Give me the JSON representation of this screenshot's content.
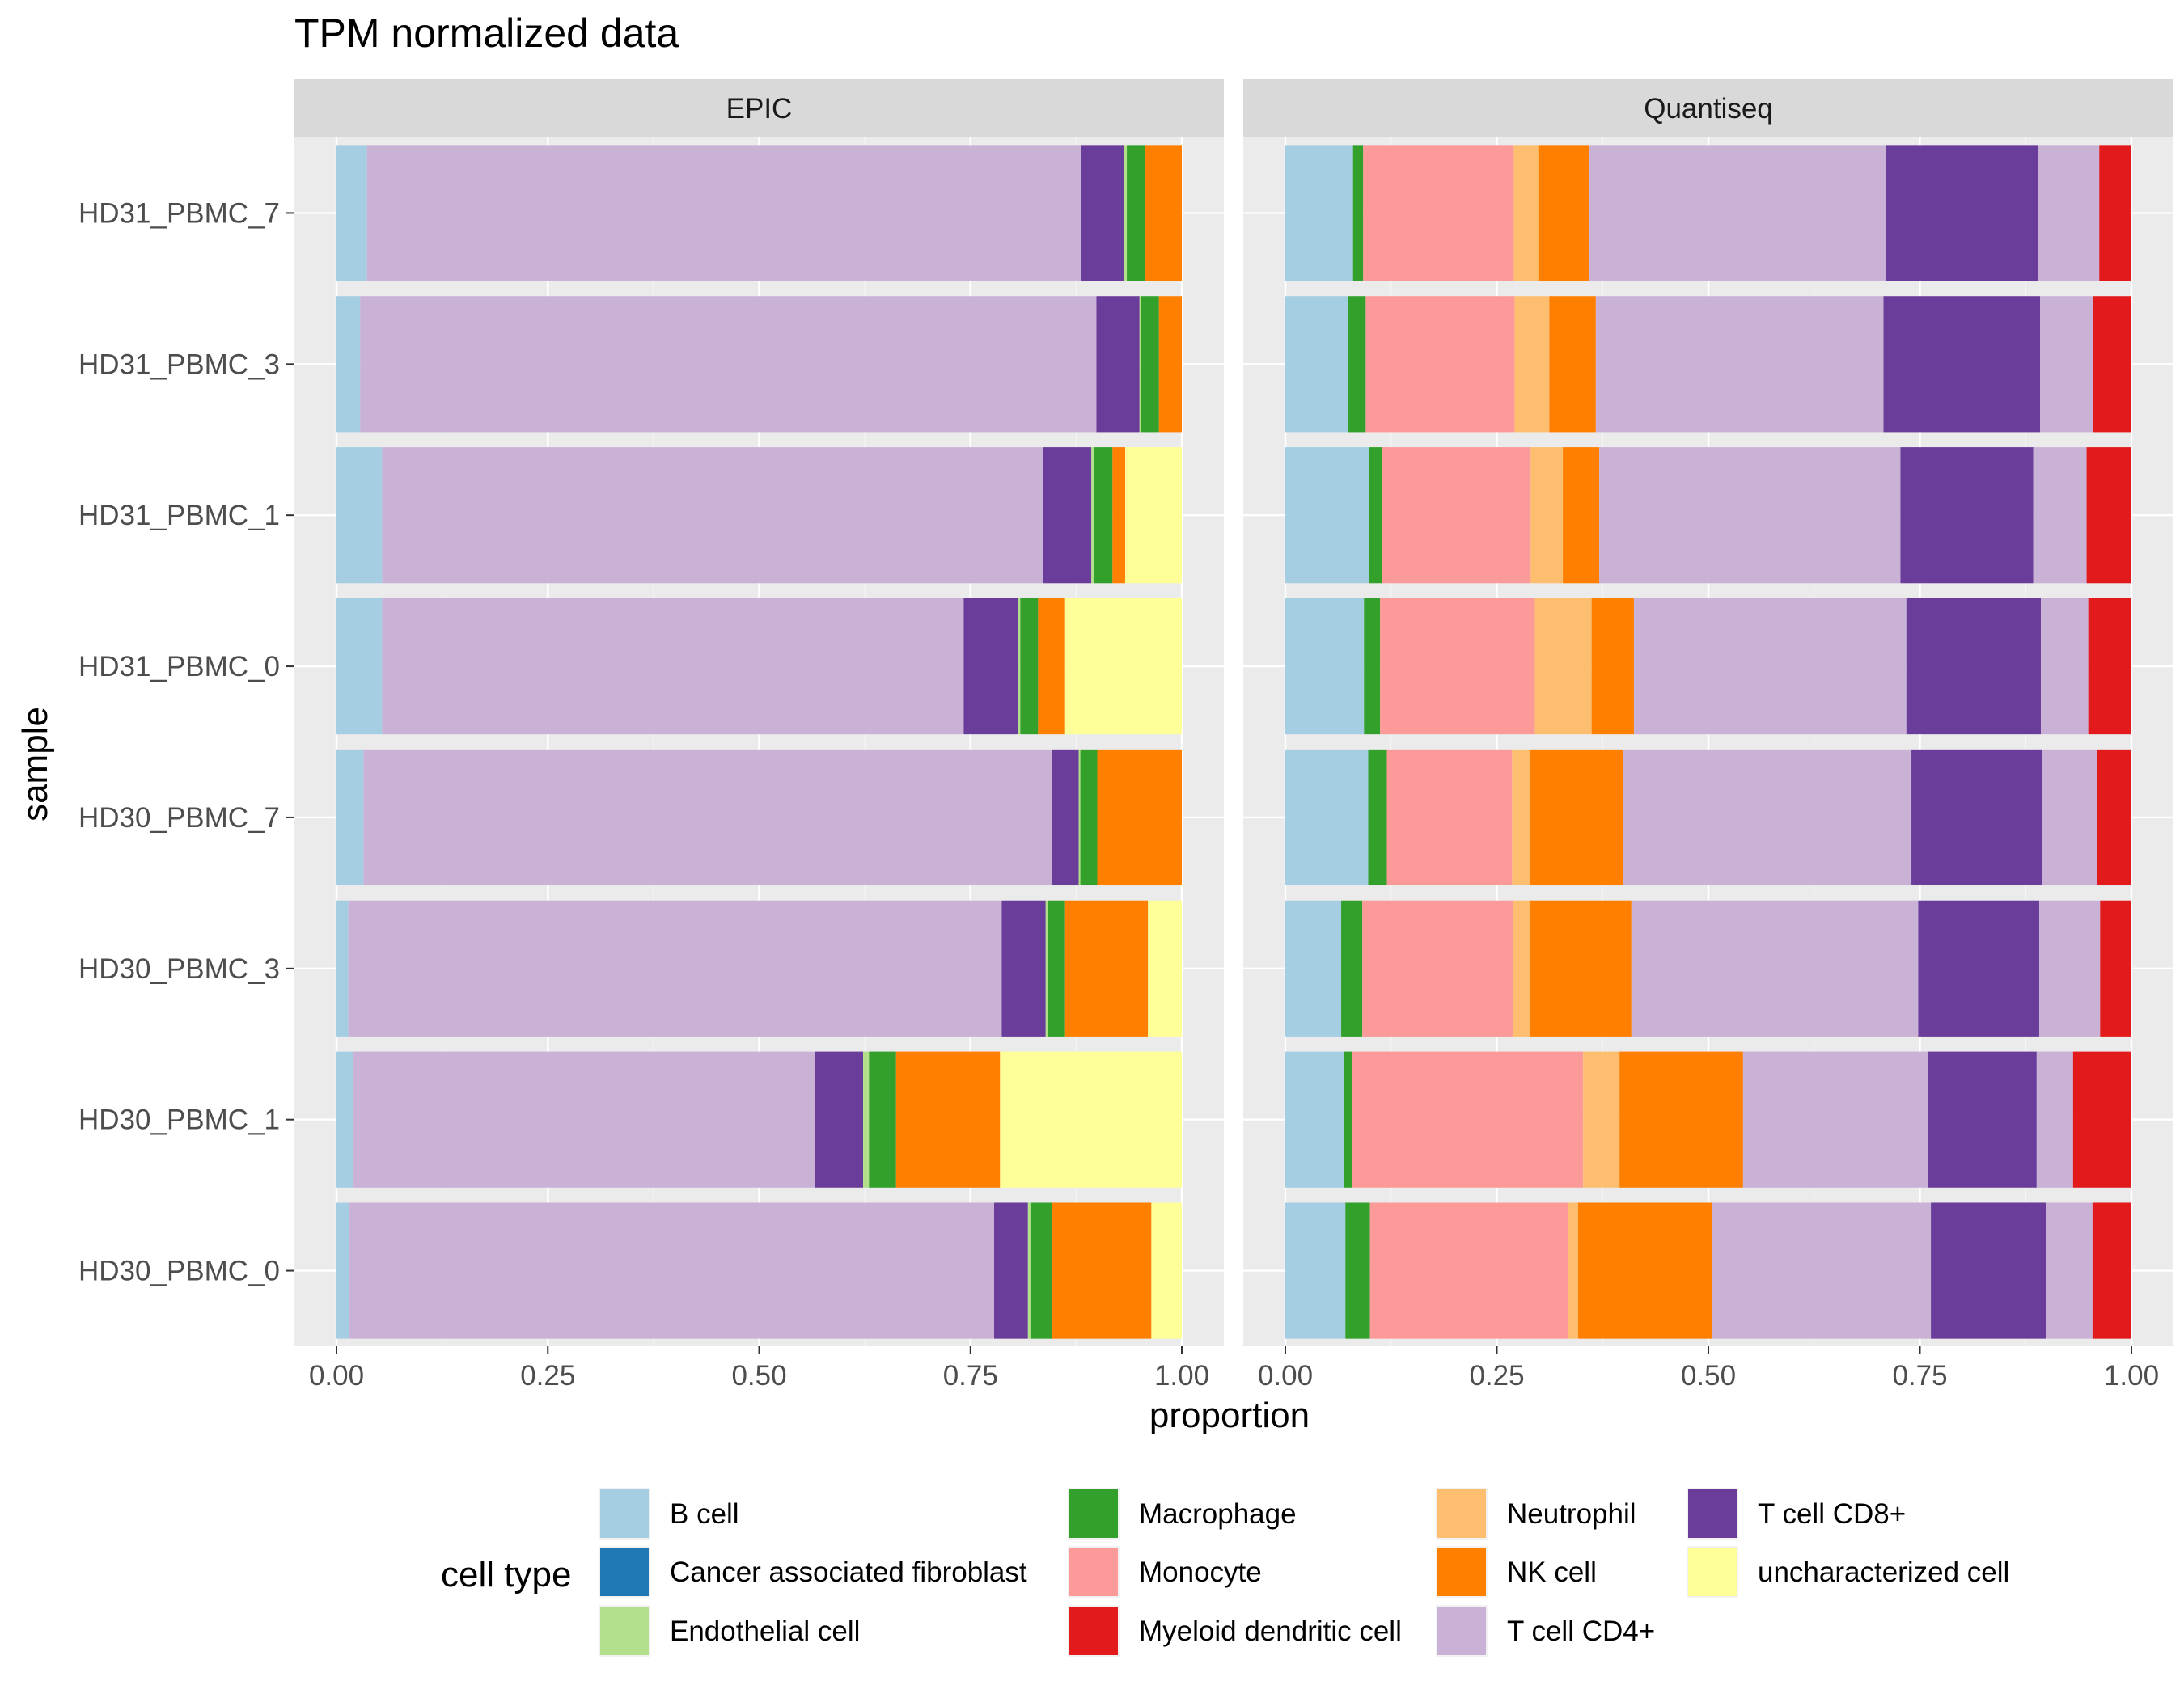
{
  "chart_data": {
    "type": "bar",
    "orientation": "horizontal",
    "stacked": true,
    "title": "TPM normalized data",
    "xlabel": "proportion",
    "ylabel": "sample",
    "xlim": [
      0,
      1
    ],
    "xticks": [
      "0.00",
      "0.25",
      "0.50",
      "0.75",
      "1.00"
    ],
    "grid": true,
    "legend_position": "bottom",
    "legend_title": "cell type",
    "categories": [
      "HD31_PBMC_7",
      "HD31_PBMC_3",
      "HD31_PBMC_1",
      "HD31_PBMC_0",
      "HD30_PBMC_7",
      "HD30_PBMC_3",
      "HD30_PBMC_1",
      "HD30_PBMC_0"
    ],
    "cell_types": [
      {
        "name": "B cell",
        "color": "#A6CEE3"
      },
      {
        "name": "Cancer associated fibroblast",
        "color": "#1F78B4"
      },
      {
        "name": "Endothelial cell",
        "color": "#B2DF8A"
      },
      {
        "name": "Macrophage",
        "color": "#33A02C"
      },
      {
        "name": "Monocyte",
        "color": "#FB9A99"
      },
      {
        "name": "Myeloid dendritic cell",
        "color": "#E31A1C"
      },
      {
        "name": "Neutrophil",
        "color": "#FDBF6F"
      },
      {
        "name": "NK cell",
        "color": "#FF7F00"
      },
      {
        "name": "T cell CD4+",
        "color": "#CAB2D6"
      },
      {
        "name": "T cell CD8+",
        "color": "#6A3D9A"
      },
      {
        "name": "uncharacterized cell",
        "color": "#FFFF99"
      }
    ],
    "panels": [
      {
        "name": "EPIC",
        "segments_order": [
          "B cell",
          "T cell CD4+",
          "T cell CD8+",
          "Endothelial cell",
          "Macrophage",
          "NK cell",
          "uncharacterized cell"
        ],
        "values": {
          "HD31_PBMC_7": [
            0.036,
            0.845,
            0.051,
            0.003,
            0.022,
            0.043,
            0.0
          ],
          "HD31_PBMC_3": [
            0.028,
            0.871,
            0.051,
            0.002,
            0.021,
            0.027,
            0.0
          ],
          "HD31_PBMC_1": [
            0.054,
            0.782,
            0.057,
            0.003,
            0.022,
            0.015,
            0.067
          ],
          "HD31_PBMC_0": [
            0.054,
            0.688,
            0.064,
            0.003,
            0.021,
            0.032,
            0.138
          ],
          "HD30_PBMC_7": [
            0.032,
            0.814,
            0.032,
            0.002,
            0.02,
            0.1,
            0.0
          ],
          "HD30_PBMC_3": [
            0.014,
            0.773,
            0.052,
            0.003,
            0.02,
            0.098,
            0.04
          ],
          "HD30_PBMC_1": [
            0.02,
            0.546,
            0.057,
            0.007,
            0.032,
            0.123,
            0.215
          ],
          "HD30_PBMC_0": [
            0.015,
            0.763,
            0.04,
            0.003,
            0.025,
            0.118,
            0.036
          ]
        }
      },
      {
        "name": "Quantiseq",
        "segments_order": [
          "B cell",
          "Macrophage",
          "Monocyte",
          "Neutrophil",
          "NK cell",
          "T cell CD4+",
          "T cell CD8+",
          "T cell CD4+",
          "Myeloid dendritic cell"
        ],
        "values": {
          "HD31_PBMC_7": [
            0.08,
            0.012,
            0.178,
            0.029,
            0.06,
            0.351,
            0.18,
            0.072,
            0.038
          ],
          "HD31_PBMC_3": [
            0.074,
            0.021,
            0.176,
            0.041,
            0.055,
            0.34,
            0.185,
            0.063,
            0.045
          ],
          "HD31_PBMC_1": [
            0.099,
            0.015,
            0.176,
            0.038,
            0.043,
            0.356,
            0.157,
            0.063,
            0.053
          ],
          "HD31_PBMC_0": [
            0.093,
            0.019,
            0.183,
            0.067,
            0.05,
            0.322,
            0.159,
            0.056,
            0.051
          ],
          "HD30_PBMC_7": [
            0.098,
            0.022,
            0.148,
            0.021,
            0.11,
            0.341,
            0.155,
            0.064,
            0.041
          ],
          "HD30_PBMC_3": [
            0.066,
            0.025,
            0.178,
            0.02,
            0.12,
            0.339,
            0.143,
            0.072,
            0.037
          ],
          "HD30_PBMC_1": [
            0.069,
            0.01,
            0.273,
            0.043,
            0.146,
            0.219,
            0.128,
            0.043,
            0.069
          ],
          "HD30_PBMC_0": [
            0.071,
            0.029,
            0.234,
            0.012,
            0.158,
            0.259,
            0.136,
            0.055,
            0.046
          ]
        }
      }
    ]
  }
}
